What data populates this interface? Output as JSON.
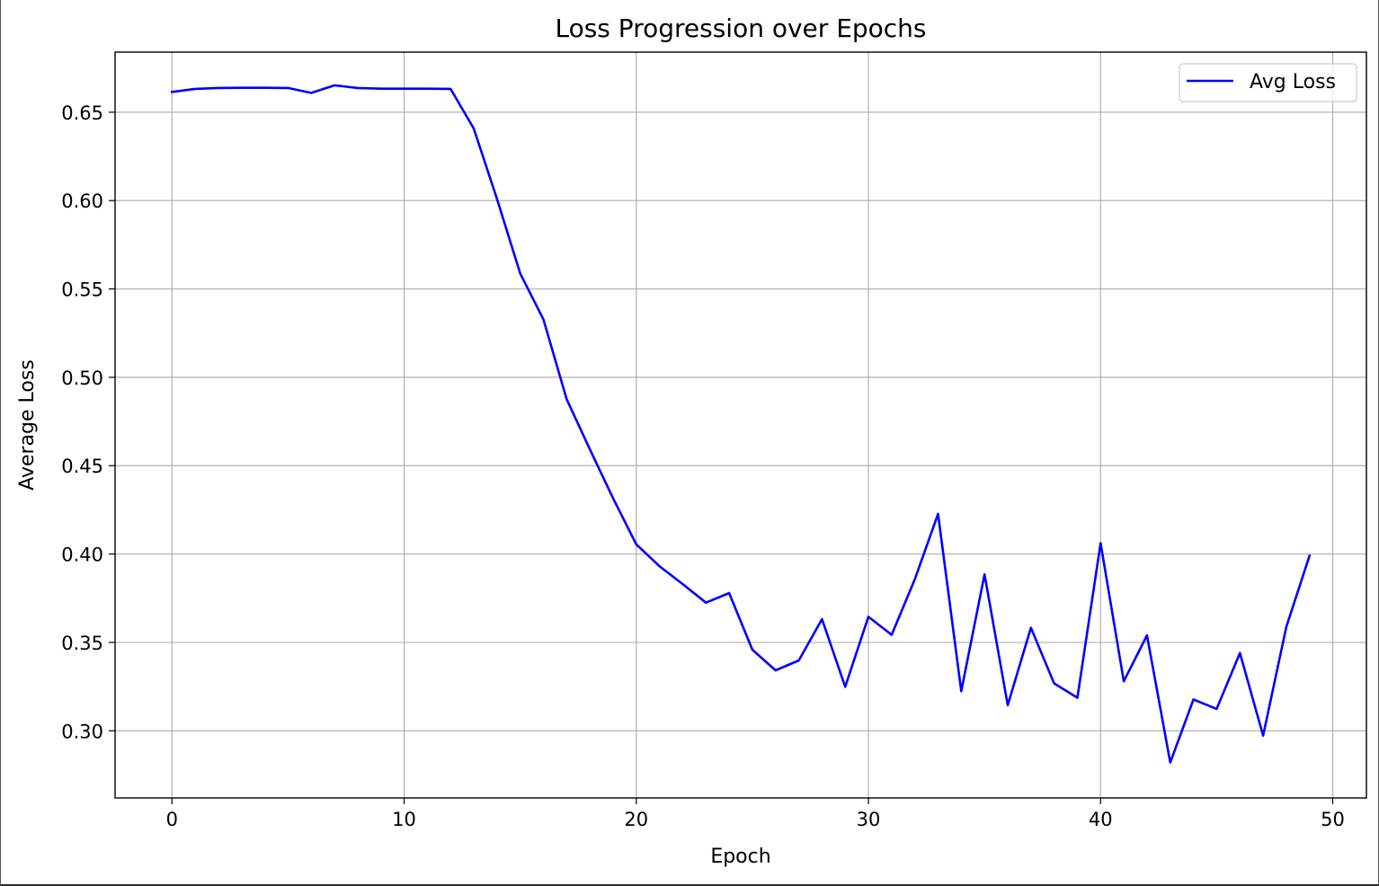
{
  "chart_data": {
    "type": "line",
    "title": "Loss Progression over Epochs",
    "xlabel": "Epoch",
    "ylabel": "Average Loss",
    "xlim": [
      -2.45,
      51.45
    ],
    "ylim": [
      0.262,
      0.684
    ],
    "xticks": [
      0,
      10,
      20,
      30,
      40,
      50
    ],
    "xtick_labels": [
      "0",
      "10",
      "20",
      "30",
      "40",
      "50"
    ],
    "yticks": [
      0.3,
      0.35,
      0.4,
      0.45,
      0.5,
      0.55,
      0.6,
      0.65
    ],
    "ytick_labels": [
      "0.30",
      "0.35",
      "0.40",
      "0.45",
      "0.50",
      "0.55",
      "0.60",
      "0.65"
    ],
    "grid": true,
    "legend_position": "top-right",
    "series": [
      {
        "name": "Avg Loss",
        "color": "#0000ff",
        "x": [
          0,
          1,
          2,
          3,
          4,
          5,
          6,
          7,
          8,
          9,
          10,
          11,
          12,
          13,
          14,
          15,
          16,
          17,
          18,
          19,
          20,
          21,
          22,
          23,
          24,
          25,
          26,
          27,
          28,
          29,
          30,
          31,
          32,
          33,
          34,
          35,
          36,
          37,
          38,
          39,
          40,
          41,
          42,
          43,
          44,
          45,
          46,
          47,
          48,
          49
        ],
        "y": [
          0.6615,
          0.6632,
          0.6637,
          0.6638,
          0.6638,
          0.6637,
          0.6609,
          0.6652,
          0.6637,
          0.6633,
          0.6633,
          0.6633,
          0.6632,
          0.6408,
          0.601,
          0.5587,
          0.5328,
          0.4877,
          0.4593,
          0.4315,
          0.4055,
          0.3931,
          0.383,
          0.3725,
          0.3779,
          0.3459,
          0.3342,
          0.3398,
          0.3632,
          0.3249,
          0.3645,
          0.3543,
          0.3858,
          0.4227,
          0.3224,
          0.3885,
          0.3145,
          0.3583,
          0.3268,
          0.3187,
          0.4062,
          0.328,
          0.354,
          0.2821,
          0.3177,
          0.3124,
          0.344,
          0.2973,
          0.3588,
          0.399
        ]
      }
    ]
  }
}
